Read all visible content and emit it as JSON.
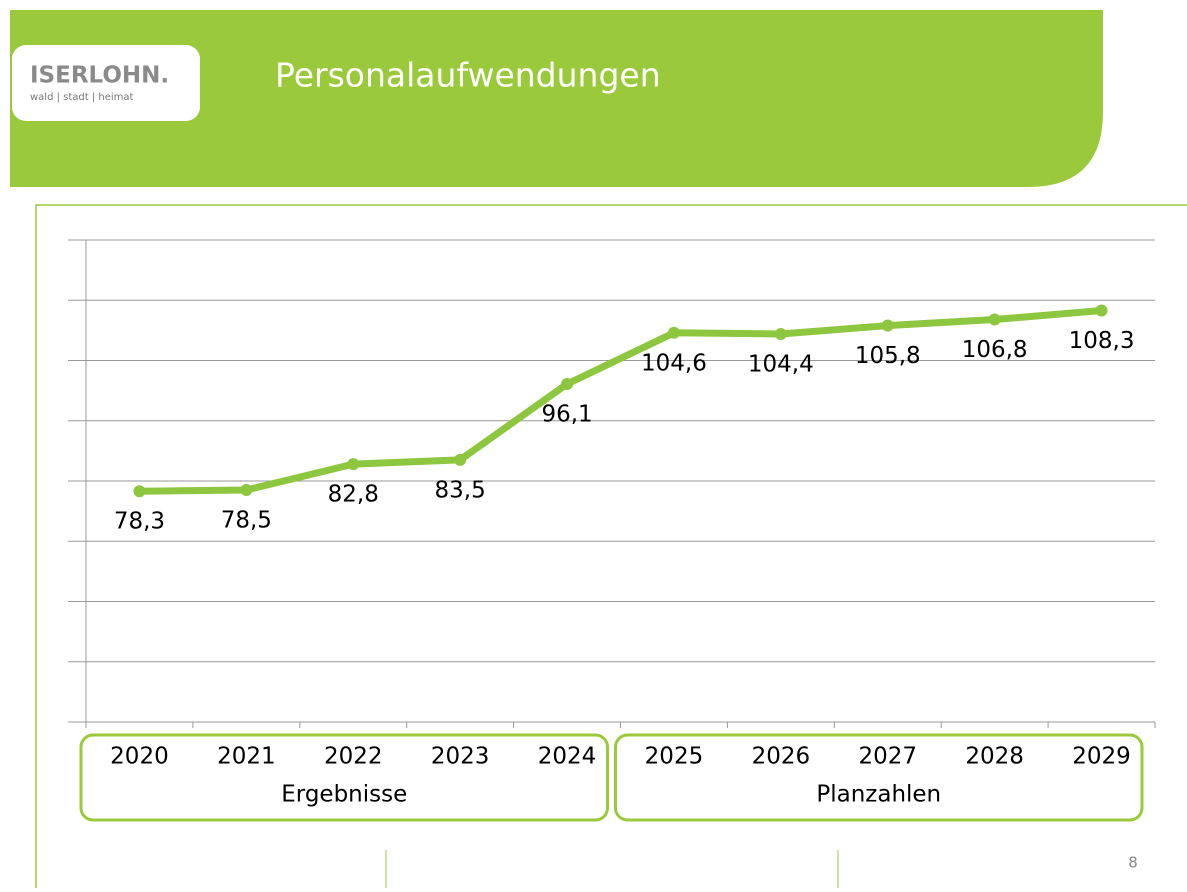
{
  "logo": {
    "name": "ISERLOHN.",
    "tagline": "wald | stadt | heimat"
  },
  "page_number": "8",
  "chart_data": {
    "type": "line",
    "title": "Personalaufwendungen",
    "categories": [
      "2020",
      "2021",
      "2022",
      "2023",
      "2024",
      "2025",
      "2026",
      "2027",
      "2028",
      "2029"
    ],
    "groups": [
      "Ergebnisse",
      "Planzahlen"
    ],
    "series": [
      {
        "name": "Personalaufwendungen",
        "color": "#8dc63f",
        "values": [
          78.3,
          78.5,
          82.8,
          83.5,
          96.1,
          104.6,
          104.4,
          105.8,
          106.8,
          108.3
        ],
        "value_labels": [
          "78,3",
          "78,5",
          "82,8",
          "83,5",
          "96,1",
          "104,6",
          "104,4",
          "105,8",
          "106,8",
          "108,3"
        ]
      }
    ],
    "ylim": [
      40,
      120
    ],
    "yticks": [
      40,
      50,
      60,
      70,
      80,
      90,
      100,
      110,
      120
    ],
    "grid": true
  }
}
